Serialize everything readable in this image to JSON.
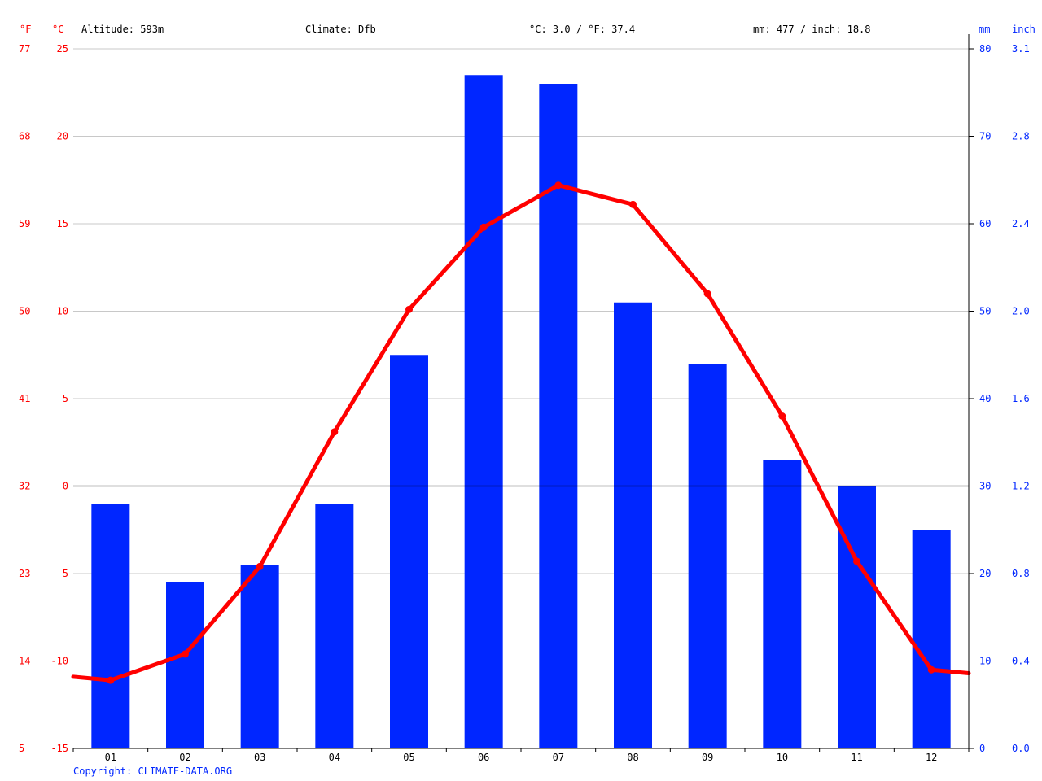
{
  "header": {
    "unit_f": "°F",
    "unit_c": "°C",
    "altitude": "Altitude: 593m",
    "climate": "Climate: Dfb",
    "temp_avg": "°C: 3.0 / °F: 37.4",
    "precip_total": "mm: 477 / inch: 18.8",
    "unit_mm": "mm",
    "unit_inch": "inch"
  },
  "copyright": "Copyright: CLIMATE-DATA.ORG",
  "colors": {
    "temperature": "#ff0000",
    "precipitation": "#0026ff",
    "grid": "#c8c8c8",
    "zero_line": "#000000"
  },
  "chart_data": {
    "type": "bar",
    "categories": [
      "01",
      "02",
      "03",
      "04",
      "05",
      "06",
      "07",
      "08",
      "09",
      "10",
      "11",
      "12"
    ],
    "series": [
      {
        "kind": "bar",
        "values": [
          28,
          19,
          21,
          28,
          45,
          77,
          76,
          51,
          44,
          33,
          30,
          25
        ]
      },
      {
        "kind": "line",
        "values": [
          -11.1,
          -9.6,
          -4.6,
          3.1,
          10.1,
          14.8,
          17.2,
          16.1,
          11.0,
          4.0,
          -4.3,
          -10.5
        ]
      }
    ],
    "line_edge_values": [
      -10.9,
      -10.7
    ],
    "axes": {
      "left_c": {
        "ylim": [
          -15,
          25
        ],
        "ticks": [
          "-15",
          "-10",
          "-5",
          "0",
          "5",
          "10",
          "15",
          "20",
          "25"
        ]
      },
      "left_f": {
        "ticks": [
          "5",
          "14",
          "23",
          "32",
          "41",
          "50",
          "59",
          "68",
          "77"
        ]
      },
      "right_mm": {
        "ylim": [
          0,
          80
        ],
        "ticks": [
          "0",
          "10",
          "20",
          "30",
          "40",
          "50",
          "60",
          "70",
          "80"
        ]
      },
      "right_inch": {
        "ticks": [
          "0.0",
          "0.4",
          "0.8",
          "1.2",
          "1.6",
          "2.0",
          "2.4",
          "2.8",
          "3.1"
        ]
      }
    },
    "grid": true
  }
}
